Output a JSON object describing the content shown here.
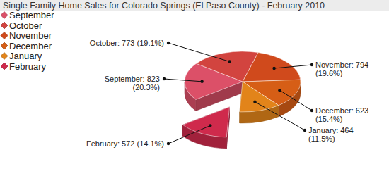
{
  "chart_data": {
    "type": "pie",
    "title": "Single Family Home Sales for Colorado Springs (El Paso County) - February 2010",
    "categories": [
      "September",
      "October",
      "November",
      "December",
      "January",
      "February"
    ],
    "values": [
      823,
      773,
      794,
      623,
      464,
      572
    ],
    "value_labels": [
      "September: 823 (20.3%)",
      "October: 773 (19.1%)",
      "November: 794 (19.6%)",
      "December: 623 (15.4%)",
      "January: 464 (11.5%)",
      "February: 572 (14.1%)"
    ],
    "colors": [
      "#dc5068",
      "#d2443f",
      "#d04a1c",
      "#d65e16",
      "#e2841a",
      "#cf2a4c"
    ],
    "data_labels": true,
    "legend": "top-left"
  }
}
